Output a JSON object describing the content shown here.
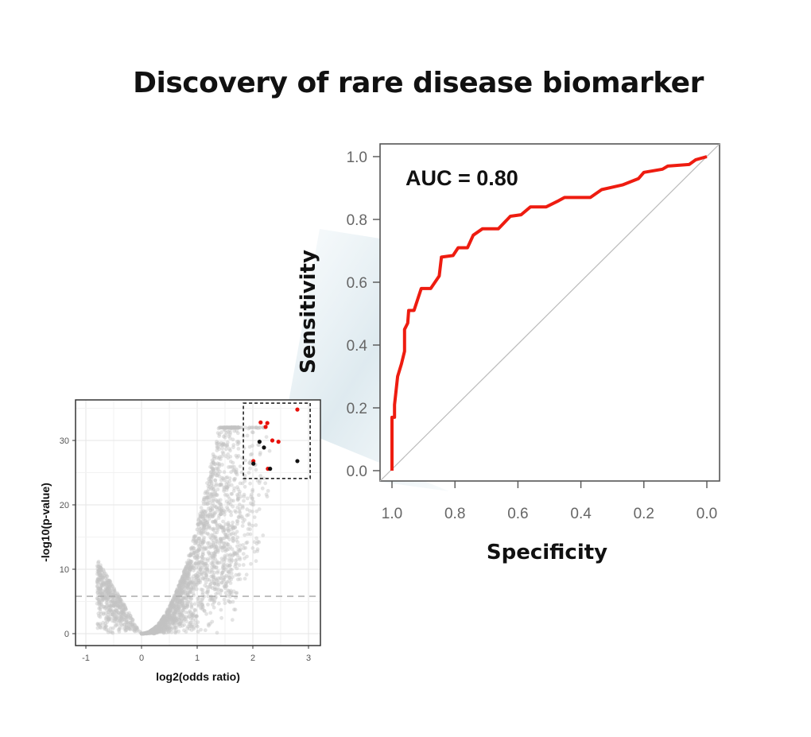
{
  "title": "Discovery of rare disease biomarker",
  "colors": {
    "roc_curve": "#ee1c10",
    "highlight_red": "#e8100a",
    "highlight_black": "#111111",
    "background_points": "#c8c8c8",
    "connector": "#dde9ef"
  },
  "chart_data": [
    {
      "type": "line",
      "name": "roc",
      "xlabel": "Specificity",
      "ylabel": "Sensitivity",
      "annotation": "AUC = 0.80",
      "xlim": [
        1.0,
        0.0
      ],
      "ylim": [
        0.0,
        1.0
      ],
      "x_reversed": true,
      "xticks": [
        "1.0",
        "0.8",
        "0.6",
        "0.4",
        "0.2",
        "0.0"
      ],
      "yticks": [
        "0.0",
        "0.2",
        "0.4",
        "0.6",
        "0.8",
        "1.0"
      ],
      "grid": false,
      "reference_line": "diagonal",
      "series": [
        {
          "specificity": [
            1.0,
            1.0,
            0.992,
            0.992,
            0.982,
            0.97,
            0.96,
            0.96,
            0.95,
            0.947,
            0.93,
            0.907,
            0.877,
            0.85,
            0.843,
            0.806,
            0.79,
            0.76,
            0.742,
            0.713,
            0.662,
            0.624,
            0.59,
            0.56,
            0.51,
            0.47,
            0.452,
            0.37,
            0.334,
            0.268,
            0.217,
            0.2,
            0.141,
            0.124,
            0.056,
            0.035,
            0.0
          ],
          "sensitivity": [
            0.0,
            0.17,
            0.17,
            0.21,
            0.3,
            0.34,
            0.38,
            0.45,
            0.47,
            0.51,
            0.51,
            0.58,
            0.58,
            0.62,
            0.68,
            0.685,
            0.71,
            0.71,
            0.75,
            0.77,
            0.77,
            0.81,
            0.815,
            0.84,
            0.84,
            0.86,
            0.87,
            0.87,
            0.895,
            0.91,
            0.93,
            0.95,
            0.96,
            0.97,
            0.975,
            0.99,
            1.0
          ]
        }
      ]
    },
    {
      "type": "scatter",
      "name": "volcano",
      "xlabel": "log2(odds ratio)",
      "ylabel": "-log10(p-value)",
      "xlim": [
        -1.2,
        3.2
      ],
      "ylim": [
        -1.5,
        36
      ],
      "xticks": [
        "-1",
        "0",
        "1",
        "2",
        "3"
      ],
      "yticks": [
        "0",
        "10",
        "20",
        "30"
      ],
      "grid": true,
      "threshold_y": 5.8,
      "highlight_box": {
        "x": [
          1.83,
          3.03
        ],
        "y": [
          24.1,
          35.8
        ]
      },
      "highlighted_points": [
        {
          "x": 2.8,
          "y": 34.8,
          "color": "red"
        },
        {
          "x": 2.14,
          "y": 32.8,
          "color": "red"
        },
        {
          "x": 2.26,
          "y": 32.7,
          "color": "red"
        },
        {
          "x": 2.23,
          "y": 32.1,
          "color": "red"
        },
        {
          "x": 2.35,
          "y": 30.0,
          "color": "red"
        },
        {
          "x": 2.46,
          "y": 29.8,
          "color": "red"
        },
        {
          "x": 2.12,
          "y": 29.8,
          "color": "black"
        },
        {
          "x": 2.2,
          "y": 28.9,
          "color": "black"
        },
        {
          "x": 2.01,
          "y": 26.8,
          "color": "red"
        },
        {
          "x": 2.01,
          "y": 26.4,
          "color": "black"
        },
        {
          "x": 2.27,
          "y": 25.6,
          "color": "red"
        },
        {
          "x": 2.31,
          "y": 25.6,
          "color": "black"
        },
        {
          "x": 2.8,
          "y": 26.8,
          "color": "black"
        }
      ]
    }
  ]
}
